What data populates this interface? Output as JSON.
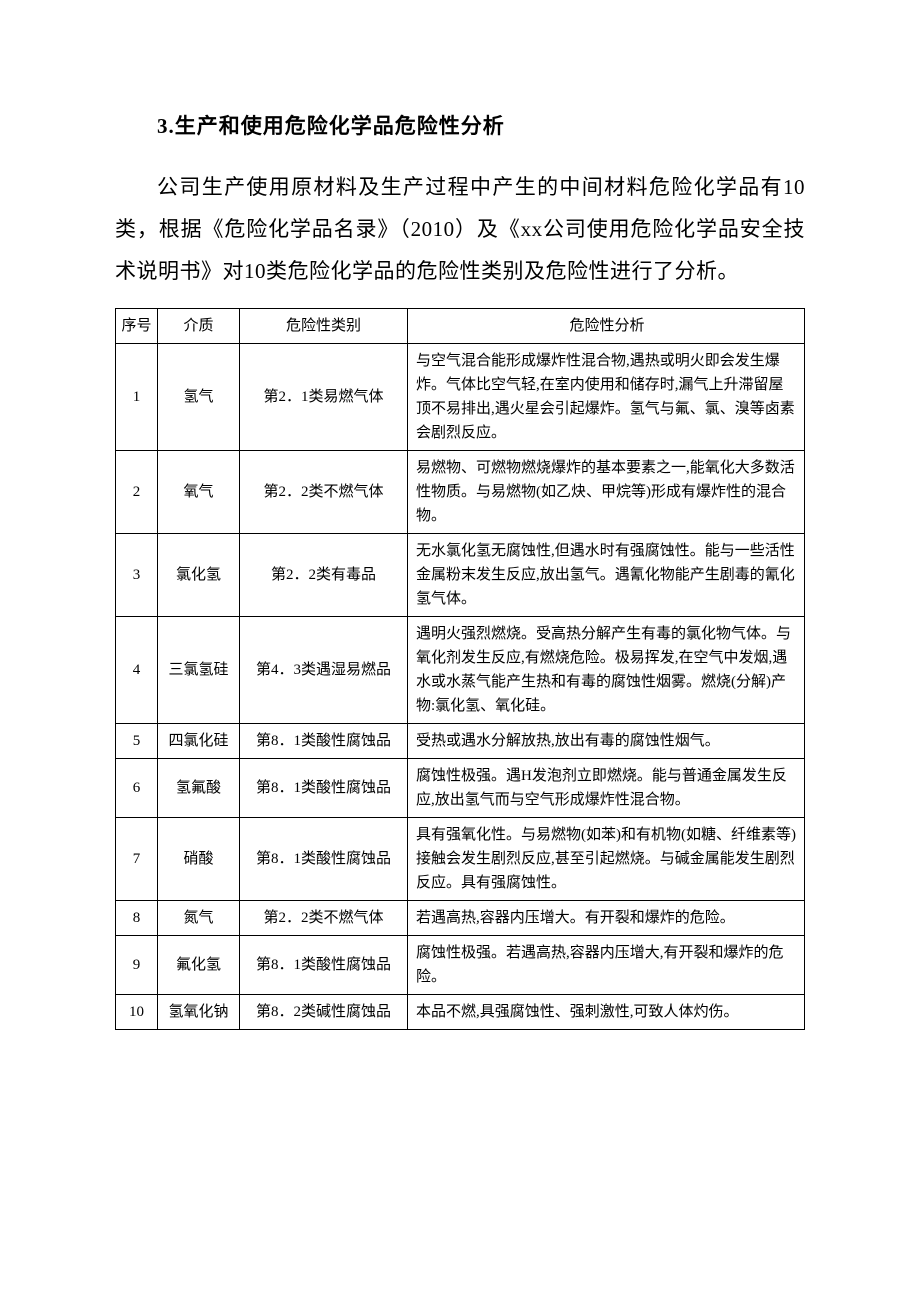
{
  "heading": "3.生产和使用危险化学品危险性分析",
  "paragraph": "公司生产使用原材料及生产过程中产生的中间材料危险化学品有10类，根据《危险化学品名录》（2010）及《xx公司使用危险化学品安全技术说明书》对10类危险化学品的危险性类别及危险性进行了分析。",
  "table": {
    "headers": {
      "seq": "序号",
      "medium": "介质",
      "category": "危险性类别",
      "analysis": "危险性分析"
    },
    "rows": [
      {
        "seq": "1",
        "medium": "氢气",
        "category": "第2．1类易燃气体",
        "analysis": "与空气混合能形成爆炸性混合物,遇热或明火即会发生爆炸。气体比空气轻,在室内使用和储存时,漏气上升滞留屋顶不易排出,遇火星会引起爆炸。氢气与氟、氯、溴等卤素会剧烈反应。"
      },
      {
        "seq": "2",
        "medium": "氧气",
        "category": "第2．2类不燃气体",
        "analysis": "易燃物、可燃物燃烧爆炸的基本要素之一,能氧化大多数活性物质。与易燃物(如乙炔、甲烷等)形成有爆炸性的混合物。"
      },
      {
        "seq": "3",
        "medium": "氯化氢",
        "category": "第2．2类有毒品",
        "analysis": "无水氯化氢无腐蚀性,但遇水时有强腐蚀性。能与一些活性金属粉末发生反应,放出氢气。遇氰化物能产生剧毒的氰化氢气体。"
      },
      {
        "seq": "4",
        "medium": "三氯氢硅",
        "category": "第4．3类遇湿易燃品",
        "analysis": "遇明火强烈燃烧。受高热分解产生有毒的氯化物气体。与氧化剂发生反应,有燃烧危险。极易挥发,在空气中发烟,遇水或水蒸气能产生热和有毒的腐蚀性烟雾。燃烧(分解)产物:氯化氢、氧化硅。"
      },
      {
        "seq": "5",
        "medium": "四氯化硅",
        "category": "第8．1类酸性腐蚀品",
        "analysis": "受热或遇水分解放热,放出有毒的腐蚀性烟气。"
      },
      {
        "seq": "6",
        "medium": "氢氟酸",
        "category": "第8．1类酸性腐蚀品",
        "analysis": "腐蚀性极强。遇H发泡剂立即燃烧。能与普通金属发生反应,放出氢气而与空气形成爆炸性混合物。"
      },
      {
        "seq": "7",
        "medium": "硝酸",
        "category": "第8．1类酸性腐蚀品",
        "analysis": "具有强氧化性。与易燃物(如苯)和有机物(如糖、纤维素等)接触会发生剧烈反应,甚至引起燃烧。与碱金属能发生剧烈反应。具有强腐蚀性。"
      },
      {
        "seq": "8",
        "medium": "氮气",
        "category": "第2．2类不燃气体",
        "analysis": "若遇高热,容器内压增大。有开裂和爆炸的危险。"
      },
      {
        "seq": "9",
        "medium": "氟化氢",
        "category": "第8．1类酸性腐蚀品",
        "analysis": "腐蚀性极强。若遇高热,容器内压增大,有开裂和爆炸的危险。"
      },
      {
        "seq": "10",
        "medium": "氢氧化钠",
        "category": "第8．2类碱性腐蚀品",
        "analysis": "本品不燃,具强腐蚀性、强刺激性,可致人体灼伤。"
      }
    ]
  }
}
